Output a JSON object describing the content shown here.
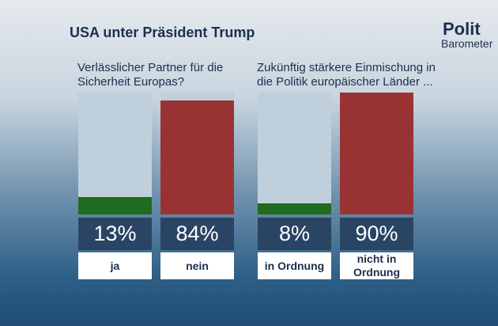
{
  "title": "USA unter Präsident Trump",
  "logo": {
    "top": "Polit",
    "bottom": "Barometer"
  },
  "chart_data": [
    {
      "type": "bar",
      "subtitle": "Verlässlicher Partner für die Sicherheit Europas?",
      "categories": [
        "ja",
        "nein"
      ],
      "values": [
        13,
        84
      ],
      "value_labels": [
        "13%",
        "84%"
      ],
      "colors": [
        "#1f6b1f",
        "#993333"
      ],
      "ylim": [
        0,
        90
      ]
    },
    {
      "type": "bar",
      "subtitle": "Zukünftig stärkere Einmischung in die Politik europäischer Länder ...",
      "categories": [
        "in Ordnung",
        "nicht in Ordnung"
      ],
      "values": [
        8,
        90
      ],
      "value_labels": [
        "8%",
        "90%"
      ],
      "colors": [
        "#1f6b1f",
        "#993333"
      ],
      "ylim": [
        0,
        90
      ]
    }
  ]
}
